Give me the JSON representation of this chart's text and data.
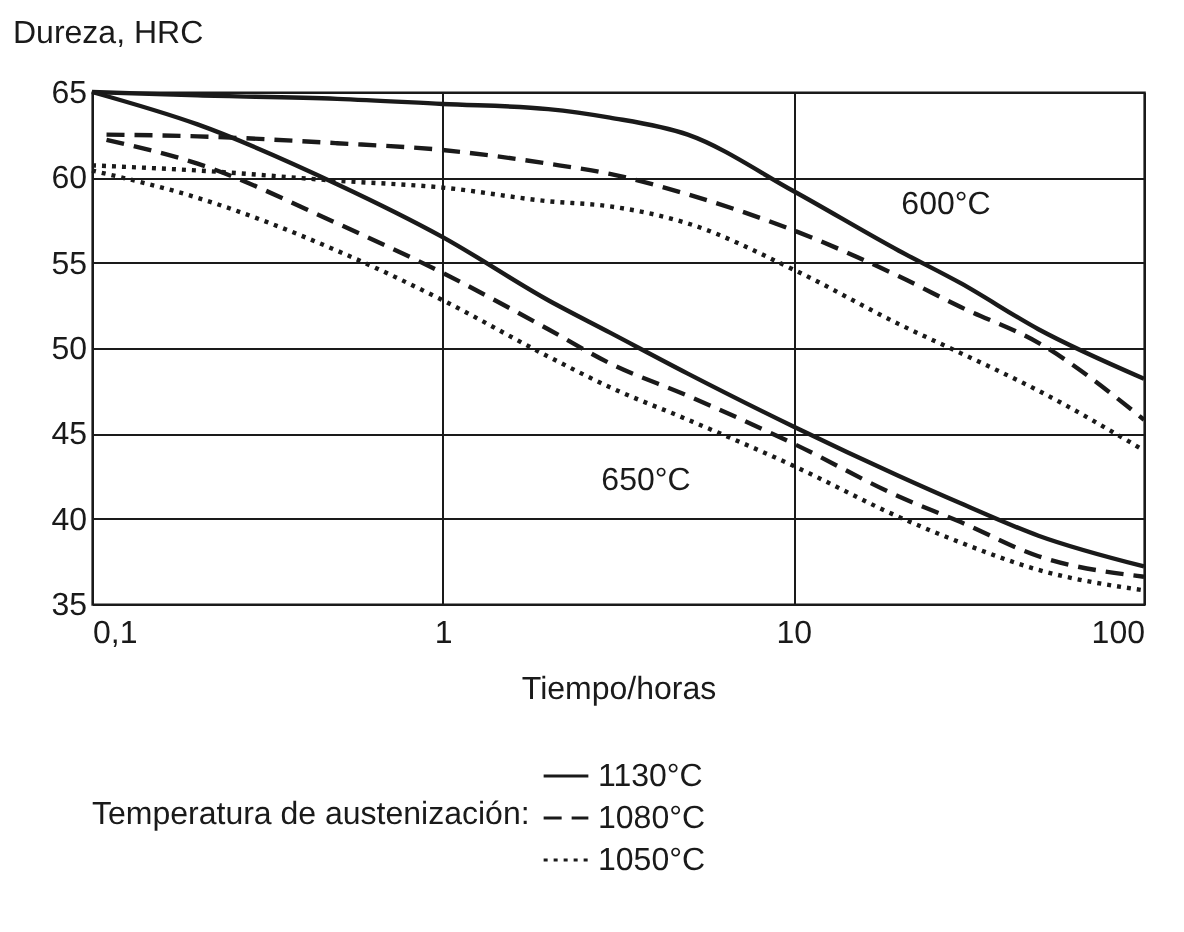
{
  "chart_data": {
    "type": "line",
    "ylabel": "Dureza, HRC",
    "xlabel": "Tiempo/horas",
    "legend_title": "Temperatura de austenización:",
    "log": "x",
    "xlim": [
      0.1,
      100
    ],
    "ylim": [
      35,
      65
    ],
    "xticks": [
      {
        "value": 0.1,
        "label": "0,1"
      },
      1,
      10,
      100
    ],
    "yticks": [
      35,
      40,
      45,
      50,
      55,
      60,
      65
    ],
    "grid": true,
    "legend": "bottom",
    "marker": "none",
    "x": [
      0.1,
      0.2,
      0.5,
      1,
      2,
      3,
      5,
      10,
      20,
      30,
      50,
      100
    ],
    "series": [
      {
        "name": "1130°C",
        "color": "#1a1a1a",
        "line_style": "solid",
        "values": [
          65,
          64.8,
          64.6,
          64.3,
          64.0,
          63.5,
          62.5,
          59.2,
          55.7,
          53.8,
          51.1,
          48.2
        ]
      },
      {
        "name": "1080°C",
        "color": "#1a1a1a",
        "line_style": "dashed",
        "x": [
          0.11,
          0.2,
          0.5,
          1,
          2,
          3,
          5,
          10,
          20,
          30,
          50,
          100
        ],
        "values": [
          62.5,
          62.4,
          62.0,
          61.6,
          60.8,
          60.2,
          59.0,
          56.9,
          54.2,
          52.4,
          50.3,
          45.8
        ]
      },
      {
        "name": "1050°C",
        "color": "#1a1a1a",
        "line_style": "dotted",
        "values": [
          60.7,
          60.4,
          59.8,
          59.4,
          58.6,
          58.3,
          57.3,
          54.6,
          51.4,
          49.7,
          47.5,
          44.0
        ]
      },
      {
        "color": "#1a1a1a",
        "line_style": "solid",
        "values": [
          65,
          63.1,
          59.6,
          56.5,
          52.8,
          50.9,
          48.5,
          45.4,
          42.5,
          40.9,
          39.0,
          37.2
        ]
      },
      {
        "color": "#1a1a1a",
        "line_style": "dashed",
        "x": [
          0.11,
          0.2,
          0.5,
          1,
          2,
          3,
          5,
          10,
          20,
          30,
          50,
          100
        ],
        "values": [
          62.2,
          60.8,
          57.3,
          54.4,
          51.1,
          49.1,
          47.2,
          44.4,
          41.3,
          39.8,
          37.8,
          36.6
        ]
      },
      {
        "color": "#1a1a1a",
        "line_style": "dotted",
        "values": [
          60.4,
          58.8,
          55.7,
          52.8,
          49.5,
          47.7,
          45.8,
          43.1,
          40.1,
          38.6,
          37.0,
          35.8
        ]
      }
    ],
    "annotations": [
      "600°C",
      "650°C"
    ]
  }
}
